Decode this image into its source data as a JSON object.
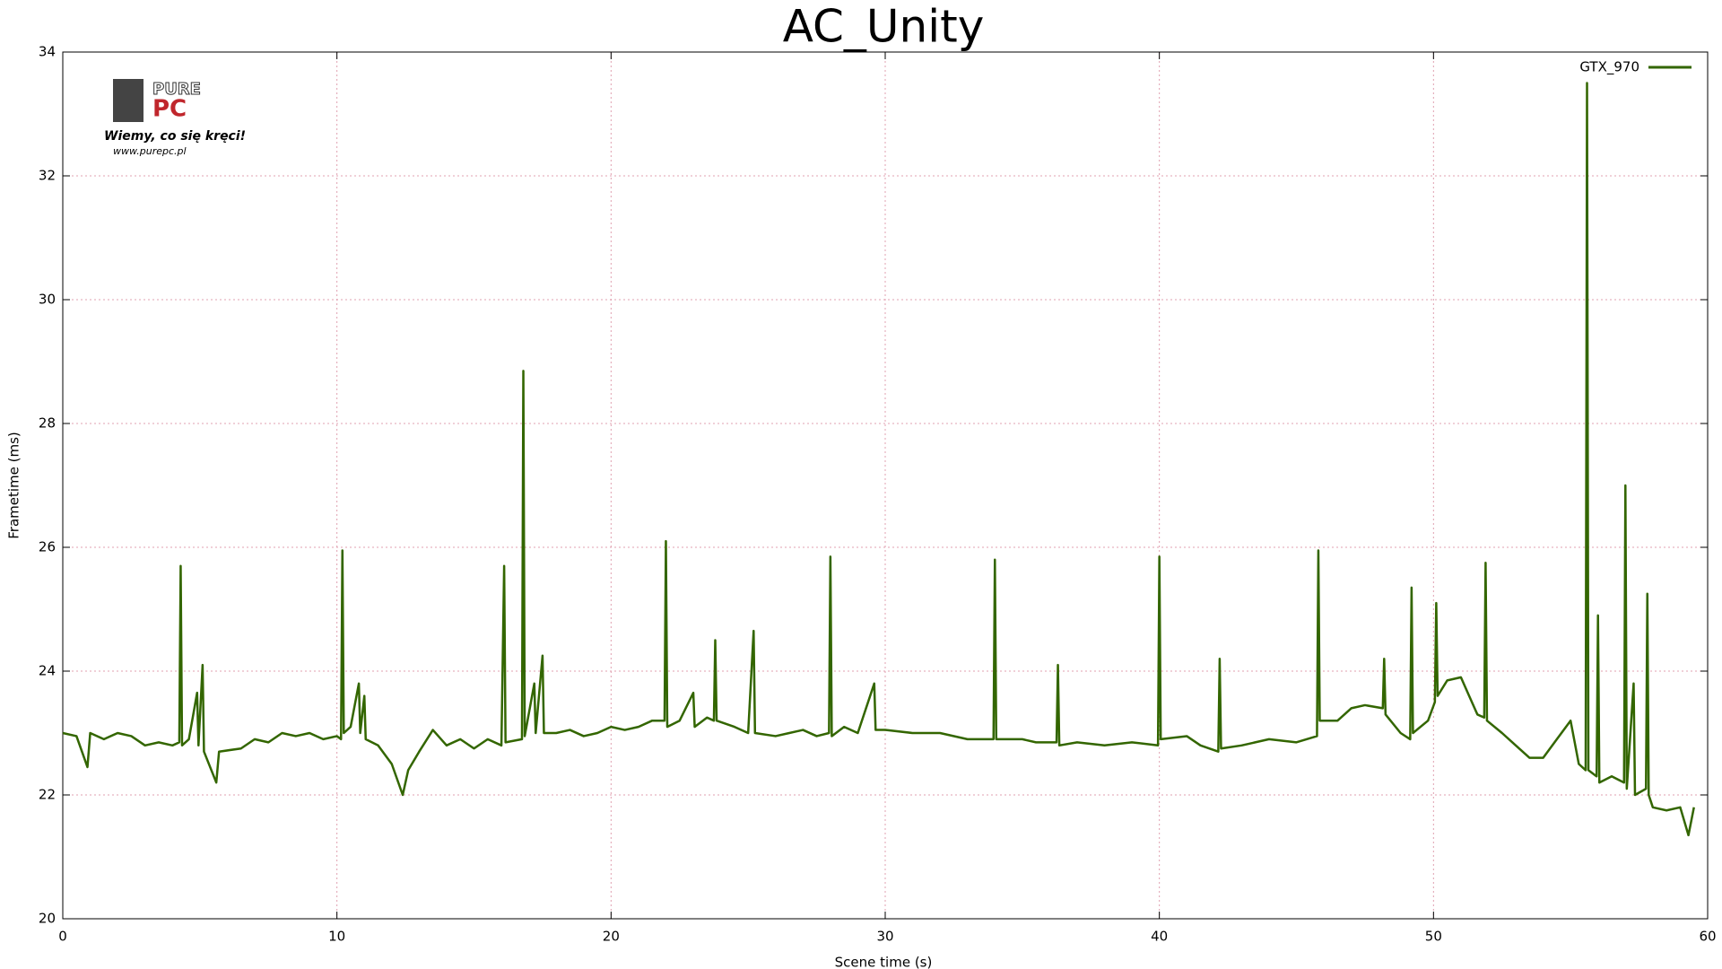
{
  "chart_data": {
    "type": "line",
    "title": "AC_Unity",
    "x_label": "Scene time (s)",
    "y_label": "Frametime (ms)",
    "xlim": [
      0,
      60
    ],
    "xticks": [
      0,
      10,
      20,
      30,
      40,
      50,
      60
    ],
    "ylim": [
      20,
      34
    ],
    "yticks": [
      20,
      22,
      24,
      26,
      28,
      30,
      32,
      34
    ],
    "grid": true,
    "legend": "upper right",
    "logo": {
      "brand_top": "PURE",
      "brand_bottom": "PC",
      "slogan": "Wiemy, co się kręci!",
      "url": "www.purepc.pl"
    },
    "x": [
      0,
      0.5,
      0.9,
      1.0,
      1.5,
      2.0,
      2.5,
      3.0,
      3.5,
      4.0,
      4.25,
      4.3,
      4.35,
      4.6,
      4.9,
      4.95,
      5.1,
      5.15,
      5.6,
      5.7,
      6.5,
      7.0,
      7.5,
      8.0,
      8.5,
      9.0,
      9.5,
      10.0,
      10.15,
      10.2,
      10.25,
      10.5,
      10.8,
      10.85,
      11.0,
      11.05,
      11.5,
      12.0,
      12.4,
      12.6,
      13.0,
      13.5,
      14.0,
      14.5,
      15.0,
      15.5,
      16.0,
      16.1,
      16.15,
      16.75,
      16.8,
      16.85,
      17.2,
      17.25,
      17.5,
      17.55,
      18.0,
      18.5,
      19.0,
      19.5,
      20.0,
      20.5,
      21.0,
      21.5,
      21.95,
      22.0,
      22.05,
      22.5,
      23.0,
      23.05,
      23.5,
      23.75,
      23.8,
      23.85,
      24.5,
      25.0,
      25.2,
      25.25,
      26.0,
      26.5,
      27.0,
      27.5,
      27.95,
      28.0,
      28.05,
      28.5,
      29.0,
      29.6,
      29.65,
      30.0,
      31.0,
      32.0,
      33.0,
      33.95,
      34.0,
      34.05,
      35.0,
      35.5,
      36.25,
      36.3,
      36.35,
      37.0,
      38.0,
      39.0,
      39.95,
      40.0,
      40.05,
      41.0,
      41.5,
      42.15,
      42.2,
      42.25,
      43.0,
      44.0,
      45.0,
      45.75,
      45.8,
      45.85,
      46.5,
      47.0,
      47.5,
      48.15,
      48.2,
      48.25,
      48.8,
      49.15,
      49.2,
      49.25,
      49.8,
      50.05,
      50.1,
      50.15,
      50.5,
      51.0,
      51.3,
      51.6,
      51.85,
      51.9,
      51.95,
      52.5,
      53.0,
      53.5,
      54.0,
      54.5,
      55.0,
      55.3,
      55.55,
      55.6,
      55.65,
      55.95,
      56.0,
      56.05,
      56.5,
      56.95,
      57.0,
      57.05,
      57.3,
      57.35,
      57.75,
      57.8,
      57.85,
      58.0,
      58.5,
      59.0,
      59.3,
      59.5
    ],
    "series": [
      {
        "name": "GTX_970",
        "color": "#336600",
        "values": [
          23.0,
          22.95,
          22.45,
          23.0,
          22.9,
          23.0,
          22.95,
          22.8,
          22.85,
          22.8,
          22.85,
          25.7,
          22.8,
          22.9,
          23.65,
          22.8,
          24.1,
          22.7,
          22.2,
          22.7,
          22.75,
          22.9,
          22.85,
          23.0,
          22.95,
          23.0,
          22.9,
          22.95,
          22.9,
          25.95,
          23.0,
          23.1,
          23.8,
          23.0,
          23.6,
          22.9,
          22.8,
          22.5,
          22.0,
          22.4,
          22.7,
          23.05,
          22.8,
          22.9,
          22.75,
          22.9,
          22.8,
          25.7,
          22.85,
          22.9,
          28.85,
          22.95,
          23.8,
          23.0,
          24.25,
          23.0,
          23.0,
          23.05,
          22.95,
          23.0,
          23.1,
          23.05,
          23.1,
          23.2,
          23.2,
          26.1,
          23.1,
          23.2,
          23.65,
          23.1,
          23.25,
          23.2,
          24.5,
          23.2,
          23.1,
          23.0,
          24.65,
          23.0,
          22.95,
          23.0,
          23.05,
          22.95,
          23.0,
          25.85,
          22.95,
          23.1,
          23.0,
          23.8,
          23.05,
          23.05,
          23.0,
          23.0,
          22.9,
          22.9,
          25.8,
          22.9,
          22.9,
          22.85,
          22.85,
          24.1,
          22.8,
          22.85,
          22.8,
          22.85,
          22.8,
          25.85,
          22.9,
          22.95,
          22.8,
          22.7,
          24.2,
          22.75,
          22.8,
          22.9,
          22.85,
          22.95,
          25.95,
          23.2,
          23.2,
          23.4,
          23.45,
          23.4,
          24.2,
          23.3,
          23.0,
          22.9,
          25.35,
          23.0,
          23.2,
          23.5,
          25.1,
          23.6,
          23.85,
          23.9,
          23.6,
          23.3,
          23.25,
          25.75,
          23.2,
          23.0,
          22.8,
          22.6,
          22.6,
          22.9,
          23.2,
          22.5,
          22.4,
          33.5,
          22.4,
          22.3,
          24.9,
          22.2,
          22.3,
          22.2,
          27.0,
          22.1,
          23.8,
          22.0,
          22.1,
          25.25,
          22.0,
          21.8,
          21.75,
          21.8,
          21.35,
          21.8
        ]
      }
    ]
  }
}
